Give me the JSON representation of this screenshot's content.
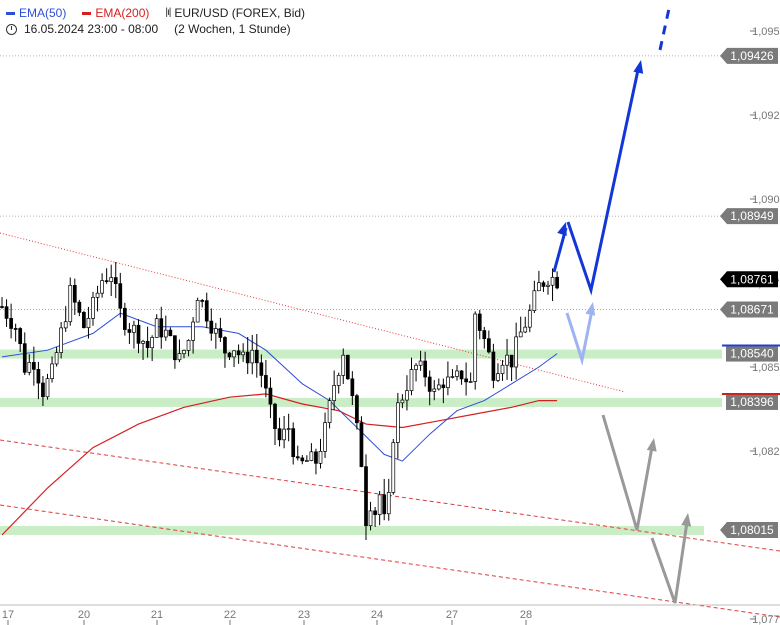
{
  "legend": {
    "ema50_label": "EMA(50)",
    "ema200_label": "EMA(200)",
    "instrument": "EUR/USD (FOREX, Bid)",
    "range": "16.05.2024 23:00 - 08:00",
    "period": "(2 Wochen, 1 Stunde)"
  },
  "colors": {
    "ema50": "#2e4fd8",
    "ema200": "#d62020",
    "candle": "#000000",
    "zone": "#bfeabb",
    "projection_up": "#1237d6",
    "projection_light": "#9fb3f3",
    "projection_gray": "#999999",
    "trend_red": "#e23a3a"
  },
  "chart_data": {
    "type": "candlestick",
    "instrument": "EUR/USD (FOREX, Bid)",
    "timeframe": "1 Stunde",
    "x_ticks": [
      "17",
      "20",
      "21",
      "22",
      "23",
      "24",
      "27",
      "28"
    ],
    "y_ticks": [
      "1,09500",
      "1,09250",
      "1,09000",
      "1,08750",
      "1,08500",
      "1,08250",
      "1,07750"
    ],
    "ylim": [
      1.0773,
      1.0968
    ],
    "price_badges": [
      {
        "label": "1,09426",
        "value": 1.09426,
        "style": "gray"
      },
      {
        "label": "1,08949",
        "value": 1.08949,
        "style": "gray"
      },
      {
        "label": "1,08761",
        "value": 1.08761,
        "style": "black"
      },
      {
        "label": "1,08671",
        "value": 1.08671,
        "style": "gray"
      },
      {
        "label": "1,08540",
        "value": 1.0854,
        "style": "blue"
      },
      {
        "label": "1,08396",
        "value": 1.08396,
        "style": "red"
      },
      {
        "label": "1,08015",
        "value": 1.08015,
        "style": "gray"
      }
    ],
    "support_zones": [
      1.0854,
      1.08396,
      1.08015
    ],
    "price_path": [
      [
        0,
        1.0868
      ],
      [
        3,
        1.0862
      ],
      [
        5,
        1.085
      ],
      [
        7,
        1.0852
      ],
      [
        9,
        1.0843
      ],
      [
        11,
        1.0848
      ],
      [
        13,
        1.086
      ],
      [
        15,
        1.0872
      ],
      [
        18,
        1.0862
      ],
      [
        20,
        1.0868
      ],
      [
        22,
        1.0876
      ],
      [
        24,
        1.0878
      ],
      [
        26,
        1.0866
      ],
      [
        28,
        1.0862
      ],
      [
        30,
        1.086
      ],
      [
        32,
        1.0856
      ],
      [
        34,
        1.0862
      ],
      [
        36,
        1.086
      ],
      [
        39,
        1.0852
      ],
      [
        41,
        1.0858
      ],
      [
        43,
        1.0872
      ],
      [
        45,
        1.0866
      ],
      [
        47,
        1.086
      ],
      [
        49,
        1.0855
      ],
      [
        51,
        1.0856
      ],
      [
        53,
        1.0852
      ],
      [
        55,
        1.0855
      ],
      [
        57,
        1.0848
      ],
      [
        59,
        1.0836
      ],
      [
        61,
        1.0828
      ],
      [
        63,
        1.0832
      ],
      [
        65,
        1.082
      ],
      [
        67,
        1.0822
      ],
      [
        69,
        1.0822
      ],
      [
        71,
        1.0831
      ],
      [
        73,
        1.0845
      ],
      [
        75,
        1.0855
      ],
      [
        77,
        1.084
      ],
      [
        79,
        1.0822
      ],
      [
        80,
        1.0805
      ],
      [
        81,
        1.081
      ],
      [
        82,
        1.0807
      ],
      [
        83,
        1.0812
      ],
      [
        84,
        1.0804
      ],
      [
        85,
        1.081
      ],
      [
        86,
        1.083
      ],
      [
        87,
        1.0838
      ],
      [
        89,
        1.0845
      ],
      [
        91,
        1.085
      ],
      [
        93,
        1.0848
      ],
      [
        95,
        1.0842
      ],
      [
        97,
        1.0846
      ],
      [
        99,
        1.0845
      ],
      [
        101,
        1.0848
      ],
      [
        103,
        1.0845
      ],
      [
        104,
        1.0866
      ],
      [
        106,
        1.0858
      ],
      [
        108,
        1.0849
      ],
      [
        110,
        1.0853
      ],
      [
        112,
        1.0852
      ],
      [
        114,
        1.086
      ],
      [
        116,
        1.0866
      ],
      [
        118,
        1.0874
      ],
      [
        120,
        1.0877
      ],
      [
        122,
        1.0876
      ]
    ],
    "ema50": [
      [
        0,
        1.0853
      ],
      [
        10,
        1.0855
      ],
      [
        20,
        1.086
      ],
      [
        26,
        1.0866
      ],
      [
        34,
        1.0862
      ],
      [
        44,
        1.0862
      ],
      [
        52,
        1.086
      ],
      [
        58,
        1.0855
      ],
      [
        66,
        1.0845
      ],
      [
        72,
        1.084
      ],
      [
        78,
        1.0832
      ],
      [
        84,
        1.0824
      ],
      [
        88,
        1.0822
      ],
      [
        94,
        1.083
      ],
      [
        100,
        1.0837
      ],
      [
        106,
        1.084
      ],
      [
        112,
        1.0845
      ],
      [
        118,
        1.085
      ],
      [
        122,
        1.0854
      ]
    ],
    "ema200": [
      [
        0,
        1.08
      ],
      [
        10,
        1.0814
      ],
      [
        20,
        1.0826
      ],
      [
        30,
        1.0833
      ],
      [
        40,
        1.0838
      ],
      [
        50,
        1.0841
      ],
      [
        58,
        1.0842
      ],
      [
        66,
        1.0839
      ],
      [
        74,
        1.0837
      ],
      [
        80,
        1.0833
      ],
      [
        88,
        1.0832
      ],
      [
        96,
        1.0834
      ],
      [
        104,
        1.0836
      ],
      [
        112,
        1.0838
      ],
      [
        118,
        1.084
      ],
      [
        122,
        1.084
      ]
    ]
  }
}
